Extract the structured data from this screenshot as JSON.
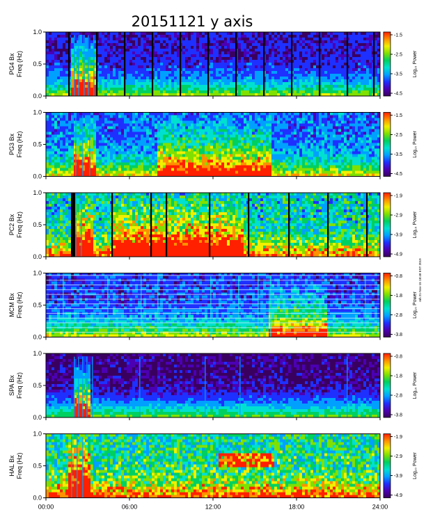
{
  "chart_data": {
    "type": "heatmap",
    "title": "20151121 y axis",
    "x_tick_labels": [
      "00:00",
      "06:00",
      "12:00",
      "18:00",
      "24:00"
    ],
    "x_ticks_hours": [
      0,
      6,
      12,
      18,
      24
    ],
    "xlim_hours": [
      0,
      24
    ],
    "ylim_hz": [
      0.0,
      1.0
    ],
    "y_tick_labels": [
      "0.0",
      "0.5",
      "1.0"
    ],
    "y_ticks": [
      0.0,
      0.5,
      1.0
    ],
    "colorbar_label": "Log₁₀ Power",
    "freq_label": "Freq (Hz)",
    "stamp": "mh 21-Nov-15 18:48 EST 2019",
    "colormap": [
      "#3a0060",
      "#4b00b4",
      "#1e30ff",
      "#00a0ff",
      "#00e0d0",
      "#00d060",
      "#80e000",
      "#f0f000",
      "#ff9000",
      "#ff2000"
    ],
    "background_level": 0.1,
    "panels": [
      {
        "station": "PG4 Bx",
        "cb_ticks": [
          "-1.5",
          "-2.5",
          "-3.5",
          "-4.5"
        ],
        "base": 0.2,
        "gaps_hours": [
          1.6,
          3.6,
          5.6,
          7.6,
          9.6,
          11.6,
          13.6,
          15.6,
          17.6,
          19.6,
          21.6,
          23.5
        ],
        "hot_hours": [
          [
            1.7,
            3.5,
            0.85
          ]
        ],
        "bursts_hours": [
          2.0,
          2.3,
          2.7,
          3.0,
          3.4
        ]
      },
      {
        "station": "PG3 Bx",
        "cb_ticks": [
          "-1.5",
          "-2.5",
          "-3.5",
          "-4.5"
        ],
        "base": 0.3,
        "gaps_hours": [],
        "hot_hours": [
          [
            1.8,
            3.4,
            0.7
          ],
          [
            8.0,
            16.0,
            0.55
          ]
        ],
        "bursts_hours": [
          2.1,
          2.6,
          3.1
        ]
      },
      {
        "station": "PC2 Bx",
        "cb_ticks": [
          "-1.9",
          "-2.9",
          "-3.9",
          "-4.9"
        ],
        "base": 0.45,
        "gaps_hours": [
          1.8,
          4.7,
          7.5,
          8.6,
          11.7,
          14.5,
          17.4,
          20.2,
          23.0
        ],
        "hot_hours": [
          [
            1.9,
            3.2,
            0.7
          ],
          [
            4.7,
            14.0,
            0.6
          ]
        ],
        "bursts_hours": [
          2.1,
          2.5
        ]
      },
      {
        "station": "MCM Bx",
        "cb_ticks": [
          "-0.8",
          "-1.8",
          "-2.8",
          "-3.8"
        ],
        "base": 0.25,
        "gaps_hours": [],
        "hot_hours": [
          [
            16.0,
            20.0,
            0.45
          ]
        ],
        "bursts_hours": [
          1.2,
          4.4,
          6.8,
          8.0,
          11.8,
          13.8,
          15.2,
          16.1,
          22.9
        ]
      },
      {
        "station": "SPA Bx",
        "cb_ticks": [
          "-0.8",
          "-1.8",
          "-2.8",
          "-3.8"
        ],
        "base": 0.15,
        "gaps_hours": [],
        "hot_hours": [
          [
            1.8,
            3.0,
            0.85
          ]
        ],
        "bursts_hours": [
          2.0,
          2.3,
          2.6,
          2.9,
          3.3,
          6.7,
          11.4,
          13.9,
          21.6
        ]
      },
      {
        "station": "HAL Bx",
        "cb_ticks": [
          "-1.9",
          "-2.9",
          "-3.9",
          "-4.9"
        ],
        "base": 0.5,
        "gaps_hours": [],
        "hot_hours": [
          [
            1.5,
            3.0,
            0.85
          ]
        ],
        "bursts_hours": [
          1.8,
          2.2,
          2.6
        ]
      }
    ]
  }
}
